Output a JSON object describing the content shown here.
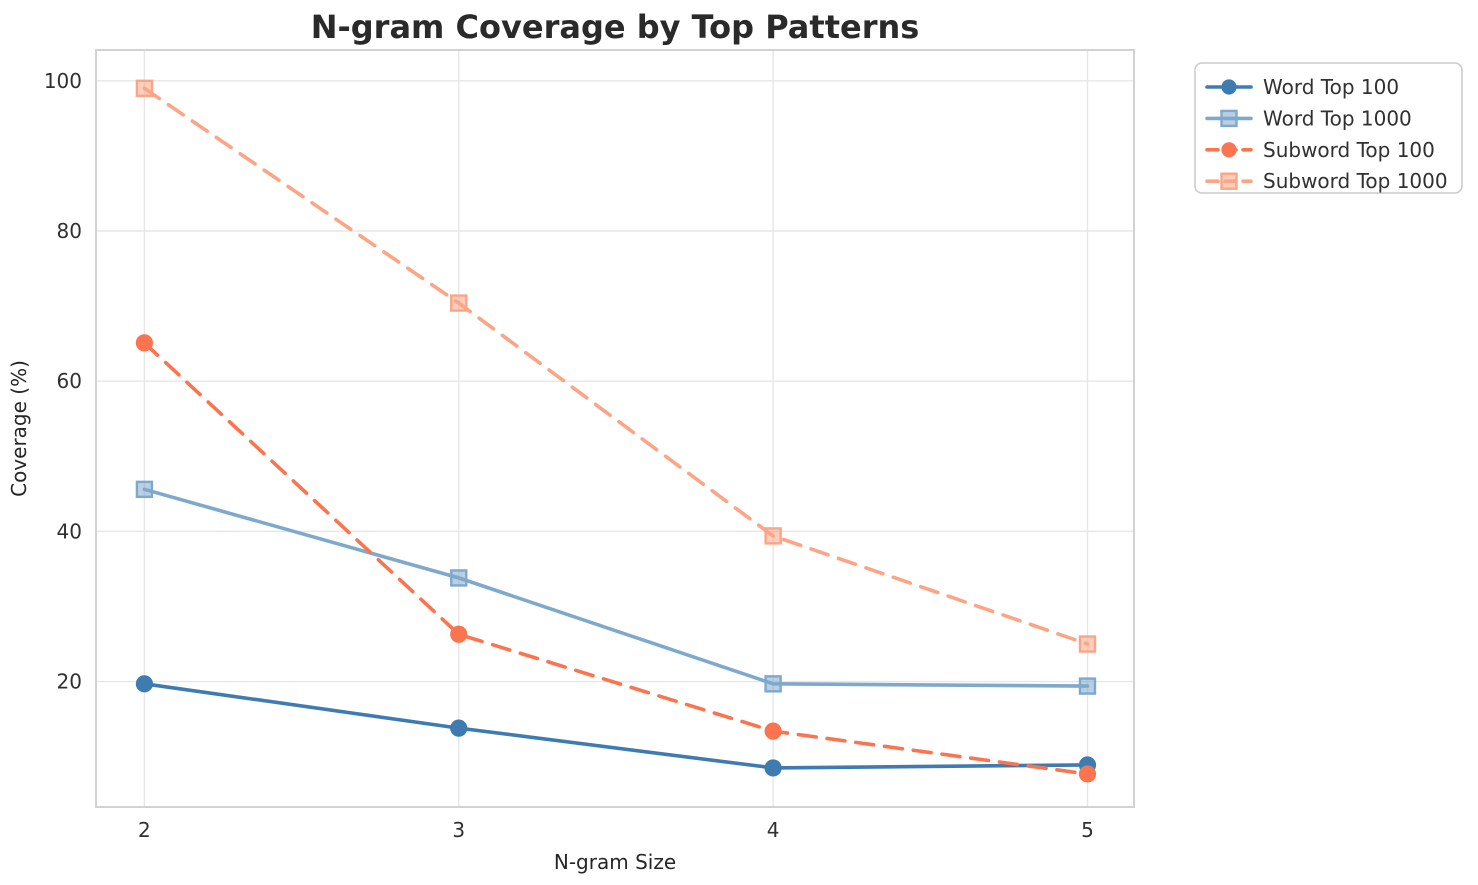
{
  "title": "N-gram Coverage by Top Patterns",
  "chart_data": {
    "type": "line",
    "title": "N-gram Coverage by Top Patterns",
    "xlabel": "N-gram Size",
    "ylabel": "Coverage (%)",
    "x": [
      2,
      3,
      4,
      5
    ],
    "xticklabels": [
      "2",
      "3",
      "4",
      "5"
    ],
    "yticks": [
      20,
      40,
      60,
      80,
      100
    ],
    "yticklabels": [
      "20",
      "40",
      "60",
      "80",
      "100"
    ],
    "xlim": [
      1.846,
      5.148
    ],
    "ylim": [
      3.3,
      104.1
    ],
    "grid": true,
    "legend_position": "outside-top-right",
    "series": [
      {
        "name": "Word Top 100",
        "values": [
          19.7,
          13.8,
          8.5,
          8.9
        ],
        "color": "#3e7bb1",
        "line_style": "solid",
        "marker": "circle"
      },
      {
        "name": "Word Top 1000",
        "values": [
          45.6,
          33.8,
          19.7,
          19.4
        ],
        "color": "#7fa8cd",
        "line_style": "solid",
        "marker": "square"
      },
      {
        "name": "Subword Top 100",
        "values": [
          65.1,
          26.3,
          13.4,
          7.7
        ],
        "color": "#fa7450",
        "line_style": "dashed",
        "marker": "circle"
      },
      {
        "name": "Subword Top 1000",
        "values": [
          99.0,
          70.4,
          39.4,
          25.0
        ],
        "color": "#fca586",
        "line_style": "dashed",
        "marker": "square"
      }
    ]
  },
  "style": {
    "grid_color": "#e7e7e7",
    "spine_color": "#d2d2d2",
    "title_color": "#2a2a2a",
    "tick_color": "#303030",
    "label_color": "#262626",
    "legend_border_color": "#cccccc",
    "legend_bg_color": "#ffffff",
    "background_color": "#ffffff"
  }
}
